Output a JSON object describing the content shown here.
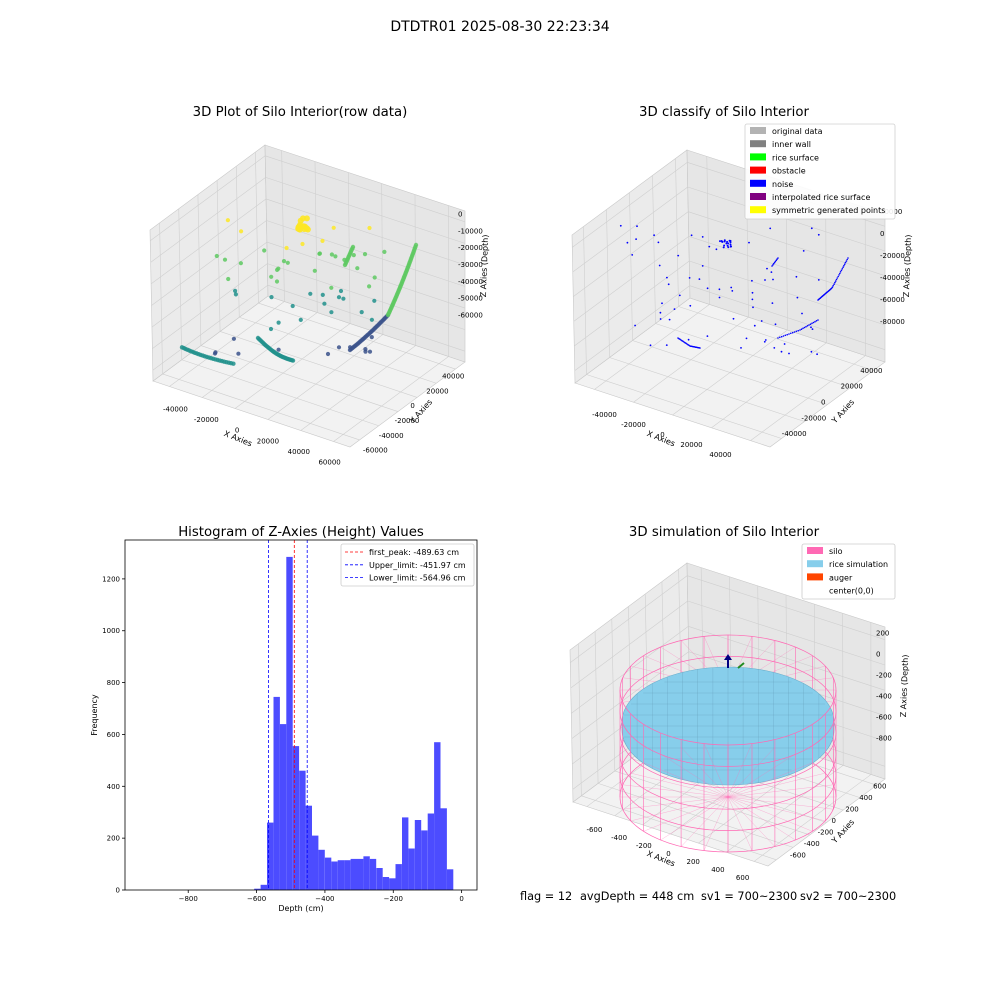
{
  "figure": {
    "suptitle": "DTDTR01 2025-08-30 22:23:34",
    "footer": {
      "flag": "flag = 12",
      "avg_depth": "avgDepth = 448 cm",
      "sv1": "sv1 = 700~2300",
      "sv2": "sv2 = 700~2300"
    }
  },
  "chart_data": [
    {
      "type": "scatter",
      "title": "3D Plot of Silo Interior(row data)",
      "xlabel": "X Axies",
      "ylabel": "Y Axies",
      "zlabel": "Z Axies (Depth)",
      "x_ticks": [
        "-40000",
        "-20000",
        "0",
        "20000",
        "40000",
        "60000"
      ],
      "y_ticks": [
        "-60000",
        "-40000",
        "-20000",
        "0",
        "20000",
        "40000"
      ],
      "z_ticks": [
        "0",
        "-10000",
        "-20000",
        "-30000",
        "-40000",
        "-50000",
        "-60000"
      ],
      "colormap": [
        "#440154",
        "#3b528b",
        "#21918c",
        "#5ec962",
        "#fde725"
      ]
    },
    {
      "type": "scatter",
      "title": "3D classify of Silo Interior",
      "xlabel": "X Axies",
      "ylabel": "Y Axies",
      "zlabel": "Z Axies (Depth)",
      "x_ticks": [
        "-40000",
        "-20000",
        "0",
        "20000",
        "40000"
      ],
      "y_ticks": [
        "-40000",
        "-20000",
        "0",
        "20000",
        "40000"
      ],
      "z_ticks": [
        "20000",
        "0",
        "-20000",
        "-40000",
        "-60000",
        "-80000"
      ],
      "legend": [
        {
          "label": "original data",
          "color": "#b3b3b3"
        },
        {
          "label": "inner wall",
          "color": "#808080"
        },
        {
          "label": "rice surface",
          "color": "#00ff00"
        },
        {
          "label": "obstacle",
          "color": "#ff0000"
        },
        {
          "label": "noise",
          "color": "#0000ff"
        },
        {
          "label": "interpolated rice surface",
          "color": "#800080"
        },
        {
          "label": "symmetric generated points",
          "color": "#ffff00"
        }
      ]
    },
    {
      "type": "bar",
      "title": "Histogram of Z-Axies (Height) Values",
      "xlabel": "Depth (cm)",
      "ylabel": "Frequency",
      "xlim": [
        -985,
        45
      ],
      "ylim": [
        0,
        1350
      ],
      "x_ticks": [
        -800,
        -600,
        -400,
        -200,
        0
      ],
      "y_ticks": [
        0,
        200,
        400,
        600,
        800,
        1000,
        1200
      ],
      "bar_color": "#4c4cff",
      "bin_width": 18.8,
      "bin_starts": [
        -607,
        -588.2,
        -569.4,
        -550.6,
        -531.8,
        -513,
        -494.2,
        -475.4,
        -456.6,
        -437.8,
        -419,
        -400.2,
        -381.4,
        -362.6,
        -343.8,
        -325,
        -306.2,
        -287.4,
        -268.6,
        -249.8,
        -231,
        -212.2,
        -193.4,
        -174.6,
        -155.8,
        -137,
        -118.2,
        -99.4,
        -80.6,
        -61.8,
        -43,
        -24.2,
        -5.4
      ],
      "values": [
        5,
        20,
        260,
        745,
        640,
        1285,
        555,
        460,
        325,
        210,
        155,
        125,
        110,
        115,
        115,
        120,
        120,
        130,
        120,
        85,
        50,
        45,
        100,
        280,
        160,
        270,
        230,
        295,
        570,
        315,
        80,
        0,
        0
      ],
      "vlines": [
        {
          "label": "first_peak: -489.63 cm",
          "x": -489.63,
          "color": "#ff0000"
        },
        {
          "label": "Upper_limit: -451.97 cm",
          "x": -451.97,
          "color": "#0000ff"
        },
        {
          "label": "Lower_limit: -564.96 cm",
          "x": -564.96,
          "color": "#0000ff"
        }
      ]
    },
    {
      "type": "surface",
      "title": "3D simulation of Silo Interior",
      "xlabel": "X Axies",
      "ylabel": "Y Axies",
      "zlabel": "Z Axies (Depth)",
      "x_ticks": [
        "-600",
        "-400",
        "-200",
        "0",
        "200",
        "400",
        "600"
      ],
      "y_ticks": [
        "-600",
        "-400",
        "-200",
        "0",
        "200",
        "400",
        "600"
      ],
      "z_ticks": [
        "200",
        "0",
        "-200",
        "-400",
        "-600",
        "-800"
      ],
      "legend": [
        {
          "label": "silo",
          "color": "#ff69b4"
        },
        {
          "label": "rice simulation",
          "color": "#87ceeb"
        },
        {
          "label": "auger",
          "color": "#ff4500"
        },
        {
          "label": "center(0,0)",
          "color": "#ffffff"
        }
      ]
    }
  ]
}
